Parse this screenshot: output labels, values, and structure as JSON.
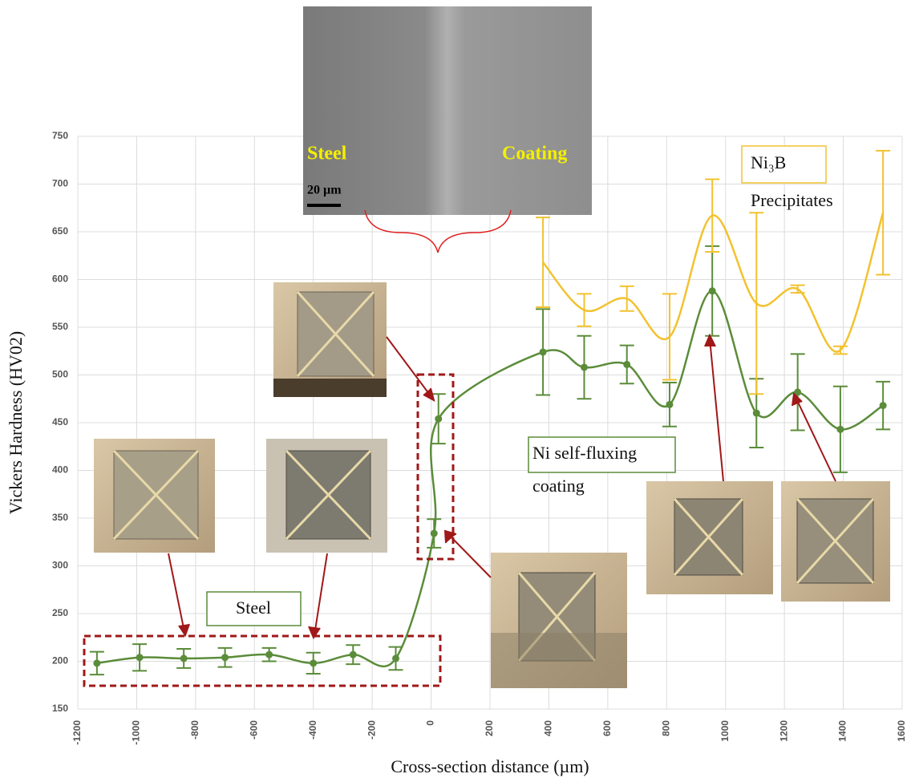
{
  "chart_data": {
    "type": "line",
    "xlabel": "Cross-section distance (µm)",
    "ylabel": "Vickers Hardness (HV02)",
    "xlim": [
      -1200,
      1600
    ],
    "xticks": [
      -1200,
      -1000,
      -800,
      -600,
      -400,
      -200,
      0,
      200,
      400,
      600,
      800,
      1000,
      1200,
      1400,
      1600
    ],
    "ylim": [
      150,
      750
    ],
    "yticks": [
      150,
      200,
      250,
      300,
      350,
      400,
      450,
      500,
      550,
      600,
      650,
      700,
      750
    ],
    "grid": true,
    "series": [
      {
        "color": "#5b8c3a",
        "markers": true,
        "x": [
          -1135,
          -990,
          -840,
          -700,
          -550,
          -400,
          -265,
          -120,
          10,
          25,
          380,
          520,
          665,
          810,
          955,
          1105,
          1245,
          1390,
          1535
        ],
        "values": [
          198,
          204,
          203,
          204,
          207,
          198,
          207,
          203,
          334,
          454,
          524,
          508,
          511,
          469,
          588,
          460,
          482,
          443,
          468
        ],
        "errors": [
          12,
          14,
          10,
          10,
          7,
          11,
          10,
          12,
          15,
          26,
          45,
          33,
          20,
          23,
          47,
          36,
          40,
          45,
          25
        ]
      },
      {
        "color": "#f2c230",
        "markers": false,
        "x": [
          380,
          520,
          665,
          810,
          955,
          1105,
          1245,
          1390,
          1535
        ],
        "values": [
          618,
          568,
          580,
          540,
          667,
          575,
          590,
          526,
          670
        ],
        "errors": [
          47,
          17,
          13,
          45,
          38,
          95,
          4,
          4,
          65
        ]
      }
    ],
    "annotations": {
      "sem_steel": "Steel",
      "sem_coating": "Coating",
      "scale_bar": "20 µm",
      "precipitates_line1": "Ni₃B",
      "precipitates_line2": "Precipitates",
      "coating_line1": "Ni self-fluxing",
      "coating_line2": "coating",
      "steel_label": "Steel"
    }
  }
}
